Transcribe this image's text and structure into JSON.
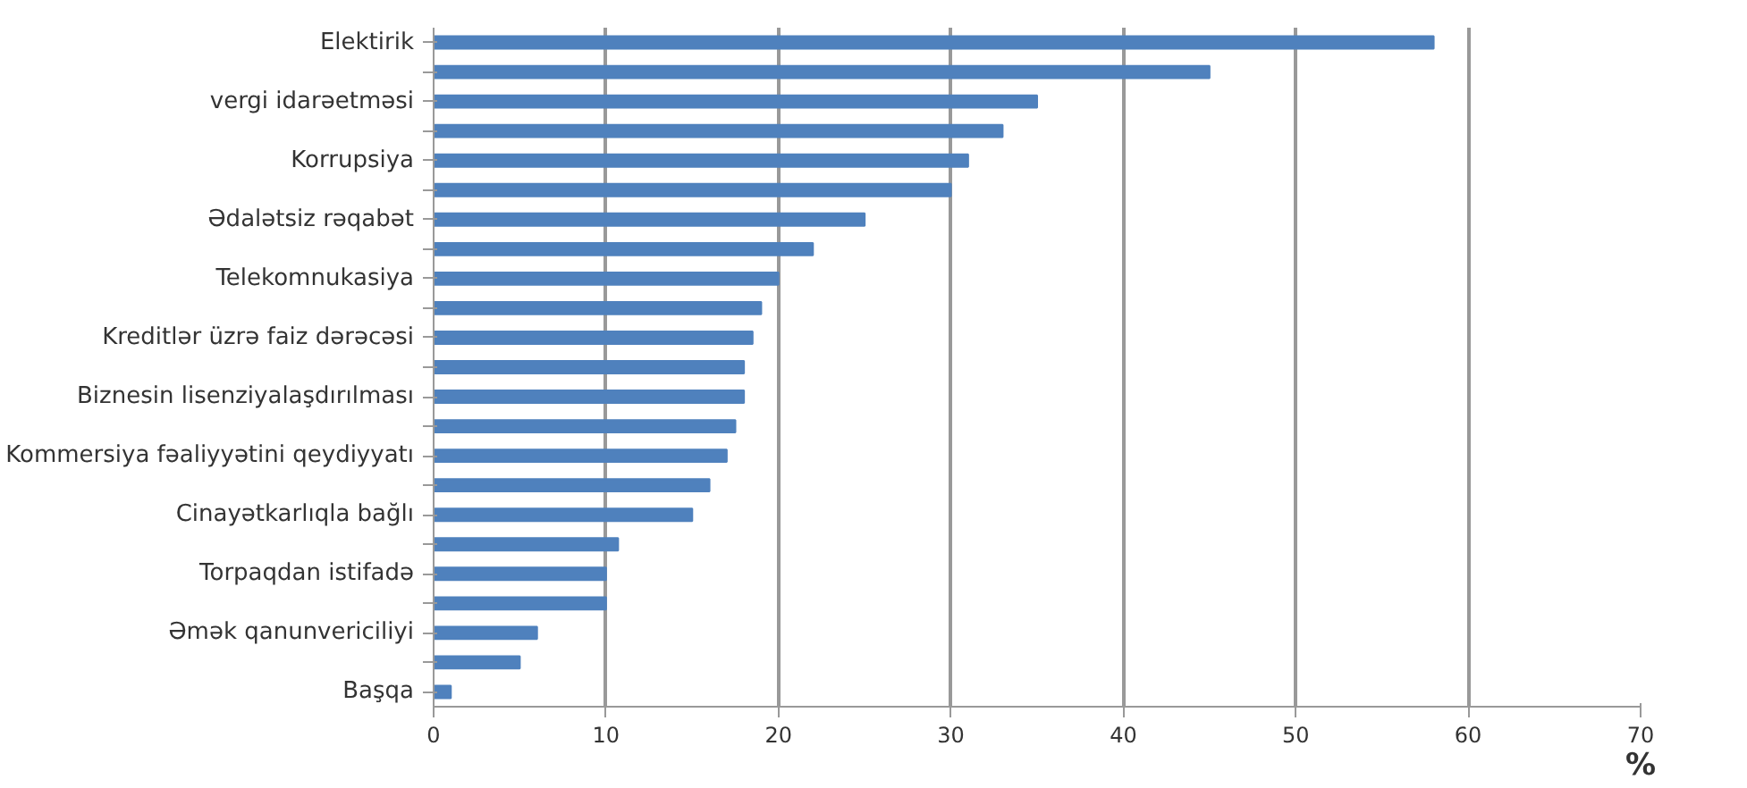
{
  "chart_data": {
    "type": "bar",
    "orientation": "horizontal",
    "xlabel": "%",
    "categories": [
      "Elektirik",
      null,
      "vergi idarəetməsi",
      null,
      "Korrupsiya",
      null,
      "Ədalətsiz rəqabət",
      null,
      "Telekomnukasiya",
      null,
      "Kreditlər üzrə faiz dərəcəsi",
      null,
      "Biznesin lisenziyalaşdırılması",
      null,
      "Kommersiya fəaliyyətini qeydiyyatı",
      null,
      "Cinayətkarlıqla bağlı",
      null,
      "Torpaqdan istifadə",
      null,
      "Əmək qanunvericiliyi",
      null,
      "Başqa"
    ],
    "values": [
      58,
      45,
      35,
      33,
      31,
      30,
      25,
      22,
      20,
      19,
      18.5,
      18,
      18,
      17.5,
      17,
      16,
      15,
      10.7,
      10,
      10,
      6,
      5,
      1
    ],
    "color": "#4f81bd",
    "xlim": [
      0,
      70
    ],
    "xticks": [
      0,
      10,
      20,
      30,
      40,
      50,
      60,
      70
    ],
    "grid": "x"
  }
}
